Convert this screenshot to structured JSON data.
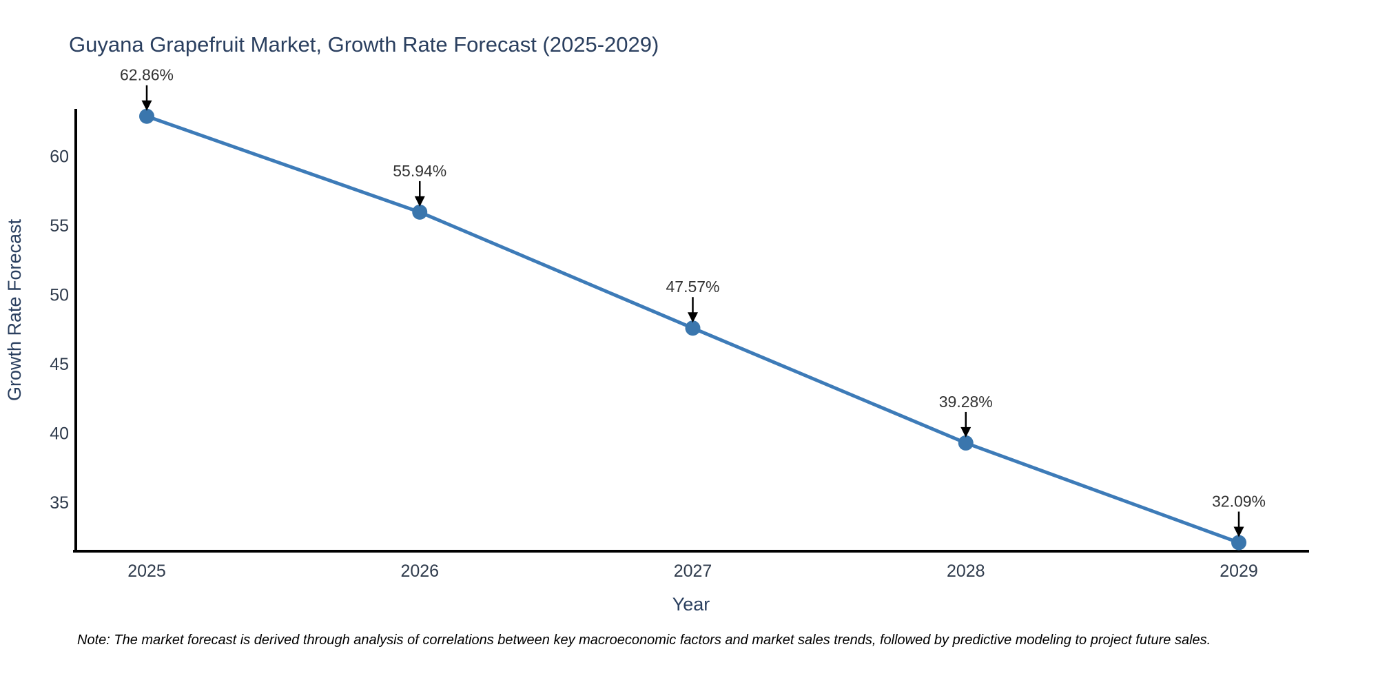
{
  "chart_data": {
    "type": "line",
    "title": "Guyana Grapefruit Market, Growth Rate Forecast (2025-2029)",
    "xlabel": "Year",
    "ylabel": "Growth Rate Forecast",
    "categories": [
      "2025",
      "2026",
      "2027",
      "2028",
      "2029"
    ],
    "series": [
      {
        "name": "Growth Rate Forecast",
        "values": [
          62.86,
          55.94,
          47.57,
          39.28,
          32.09
        ],
        "point_labels": [
          "62.86%",
          "55.94%",
          "47.57%",
          "39.28%",
          "32.09%"
        ]
      }
    ],
    "yticks": [
      35,
      40,
      45,
      50,
      55,
      60
    ],
    "ylim": [
      31.5,
      63.4
    ],
    "grid": false,
    "legend_position": "none",
    "colors": {
      "line": "#3d7bb8",
      "marker": "#3a76ad",
      "annotation_arrow": "#000000",
      "annotation_text": "#333333",
      "axis_line": "#000000",
      "title": "#2a3f5f",
      "axis_title": "#2a3f5f",
      "tick": "#2f3b4c"
    }
  },
  "note": {
    "text": "Note: The market forecast is derived through analysis of correlations between key macroeconomic factors and market sales trends, followed by predictive modeling to project future sales."
  }
}
